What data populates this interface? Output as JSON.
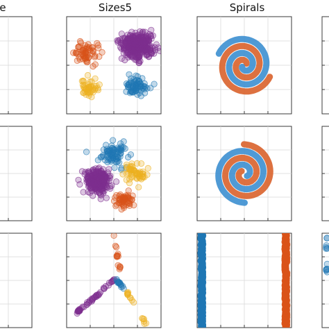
{
  "figure": {
    "column_titles": [
      "e",
      "Sizes5",
      "Spirals",
      ""
    ],
    "colors": {
      "blue": "#1f77b4",
      "orange": "#d95319",
      "yellow": "#edb120",
      "purple": "#7e2f8e",
      "green": "#77ac30",
      "spiral_blue": "#3c8fd0",
      "spiral_orange": "#d9622b"
    }
  },
  "chart_data": [
    {
      "id": "r1c1",
      "type": "scatter",
      "row": 1,
      "col": 1,
      "title": "e",
      "xlim": [
        0,
        1
      ],
      "ylim": [
        0,
        1
      ],
      "series": [
        {
          "color": "blue",
          "shape": "disk",
          "center": [
            0.18,
            0.52
          ],
          "radius": [
            0.34,
            0.46
          ],
          "count": 220,
          "seed": 11
        }
      ]
    },
    {
      "id": "r1c2",
      "type": "scatter",
      "row": 1,
      "col": 2,
      "title": "Sizes5",
      "xlim": [
        0,
        1
      ],
      "ylim": [
        0,
        1
      ],
      "series": [
        {
          "color": "orange",
          "shape": "blob",
          "center": [
            0.2,
            0.63
          ],
          "radius": [
            0.14,
            0.1
          ],
          "count": 60,
          "seed": 21
        },
        {
          "color": "purple",
          "shape": "blob",
          "center": [
            0.75,
            0.7
          ],
          "radius": [
            0.16,
            0.13
          ],
          "count": 380,
          "seed": 22
        },
        {
          "color": "yellow",
          "shape": "blob",
          "center": [
            0.25,
            0.27
          ],
          "radius": [
            0.1,
            0.1
          ],
          "count": 45,
          "seed": 23
        },
        {
          "color": "blue",
          "shape": "blob",
          "center": [
            0.75,
            0.28
          ],
          "radius": [
            0.13,
            0.09
          ],
          "count": 70,
          "seed": 24
        }
      ]
    },
    {
      "id": "r1c3",
      "type": "line",
      "row": 1,
      "col": 3,
      "title": "Spirals",
      "xlim": [
        -1,
        1
      ],
      "ylim": [
        -1,
        1
      ],
      "series": [
        {
          "color": "spiral_orange",
          "spiral": {
            "a": 0.03,
            "b": 0.145,
            "t0": 0.6,
            "t1": 12.2,
            "phase": 0.0
          }
        },
        {
          "color": "spiral_blue",
          "spiral": {
            "a": 0.03,
            "b": 0.145,
            "t0": 0.6,
            "t1": 12.2,
            "phase": 3.14159
          }
        }
      ]
    },
    {
      "id": "r1c4",
      "type": "scatter",
      "row": 1,
      "col": 4,
      "title": "",
      "xlim": [
        0,
        1
      ],
      "ylim": [
        0,
        1
      ],
      "series": [
        {
          "color": "green",
          "shape": "arc",
          "center": [
            0.55,
            0.45
          ],
          "radius": [
            0.42,
            0.42
          ],
          "count": 60,
          "seed": 31
        }
      ]
    },
    {
      "id": "r2c1",
      "type": "scatter",
      "row": 2,
      "col": 1,
      "title": "",
      "xlim": [
        0,
        1
      ],
      "ylim": [
        0,
        1
      ],
      "series": [
        {
          "color": "orange",
          "shape": "disk",
          "center": [
            0.2,
            0.5
          ],
          "radius": [
            0.36,
            0.46
          ],
          "count": 200,
          "seed": 41
        }
      ]
    },
    {
      "id": "r2c2",
      "type": "scatter",
      "row": 2,
      "col": 2,
      "title": "",
      "xlim": [
        0,
        1
      ],
      "ylim": [
        0,
        1
      ],
      "series": [
        {
          "color": "blue",
          "shape": "blob",
          "center": [
            0.5,
            0.7
          ],
          "radius": [
            0.14,
            0.12
          ],
          "count": 80,
          "seed": 51
        },
        {
          "color": "yellow",
          "shape": "blob",
          "center": [
            0.72,
            0.5
          ],
          "radius": [
            0.11,
            0.1
          ],
          "count": 55,
          "seed": 52
        },
        {
          "color": "purple",
          "shape": "blob",
          "center": [
            0.33,
            0.42
          ],
          "radius": [
            0.13,
            0.12
          ],
          "count": 260,
          "seed": 53
        },
        {
          "color": "orange",
          "shape": "blob",
          "center": [
            0.6,
            0.22
          ],
          "radius": [
            0.11,
            0.09
          ],
          "count": 55,
          "seed": 54
        }
      ]
    },
    {
      "id": "r2c3",
      "type": "line",
      "row": 2,
      "col": 3,
      "title": "",
      "xlim": [
        -1,
        1
      ],
      "ylim": [
        -1,
        1
      ],
      "series": [
        {
          "color": "spiral_orange",
          "spiral": {
            "a": 0.04,
            "b": 0.145,
            "t0": 0.8,
            "t1": 12.6,
            "phase": 1.6
          }
        },
        {
          "color": "spiral_blue",
          "spiral": {
            "a": 0.04,
            "b": 0.145,
            "t0": 0.8,
            "t1": 12.6,
            "phase": 4.74
          }
        }
      ]
    },
    {
      "id": "r2c4",
      "type": "scatter",
      "row": 2,
      "col": 4,
      "title": "",
      "xlim": [
        0,
        1
      ],
      "ylim": [
        0,
        1
      ],
      "series": [
        {
          "color": "green",
          "shape": "arc",
          "center": [
            0.62,
            0.52
          ],
          "radius": [
            0.3,
            0.3
          ],
          "count": 50,
          "seed": 61
        },
        {
          "color": "blue",
          "shape": "arc",
          "center": [
            0.62,
            0.52
          ],
          "radius": [
            0.42,
            0.42
          ],
          "count": 50,
          "seed": 62
        }
      ]
    },
    {
      "id": "r3c1",
      "type": "scatter",
      "row": 3,
      "col": 1,
      "title": "",
      "xlim": [
        0,
        1
      ],
      "ylim": [
        0,
        1
      ],
      "series": [
        {
          "color": "orange",
          "shape": "column",
          "x": 0.22,
          "yrange": [
            0.3,
            0.97
          ],
          "count": 22,
          "seed": 71
        }
      ]
    },
    {
      "id": "r3c2",
      "type": "scatter",
      "row": 3,
      "col": 2,
      "title": "",
      "xlim": [
        0,
        1
      ],
      "ylim": [
        0,
        1
      ],
      "series": [
        {
          "color": "orange",
          "shape": "segment",
          "from": [
            0.5,
            0.98
          ],
          "to": [
            0.58,
            0.52
          ],
          "count": 14,
          "seed": 81
        },
        {
          "color": "purple",
          "shape": "segment",
          "from": [
            0.1,
            0.15
          ],
          "to": [
            0.52,
            0.52
          ],
          "count": 50,
          "seed": 82
        },
        {
          "color": "blue",
          "shape": "segment",
          "from": [
            0.52,
            0.52
          ],
          "to": [
            0.62,
            0.4
          ],
          "count": 14,
          "seed": 83
        },
        {
          "color": "yellow",
          "shape": "segment",
          "from": [
            0.62,
            0.4
          ],
          "to": [
            0.72,
            0.25
          ],
          "count": 10,
          "seed": 84
        },
        {
          "color": "yellow",
          "shape": "segment",
          "from": [
            0.8,
            0.12
          ],
          "to": [
            0.84,
            0.03
          ],
          "count": 6,
          "seed": 85
        }
      ]
    },
    {
      "id": "r3c3",
      "type": "scatter",
      "row": 3,
      "col": 3,
      "title": "",
      "xlim": [
        0,
        1
      ],
      "ylim": [
        0,
        1
      ],
      "series": [
        {
          "color": "blue",
          "shape": "column",
          "x": 0.05,
          "yrange": [
            0.0,
            1.0
          ],
          "count": 120,
          "seed": 91,
          "dense": true
        },
        {
          "color": "orange",
          "shape": "column",
          "x": 0.94,
          "yrange": [
            0.0,
            1.0
          ],
          "count": 120,
          "seed": 92,
          "dense": true
        }
      ]
    },
    {
      "id": "r3c4",
      "type": "scatter",
      "row": 3,
      "col": 4,
      "title": "",
      "xlim": [
        0,
        1
      ],
      "ylim": [
        0,
        1
      ],
      "series": [
        {
          "color": "blue",
          "shape": "column",
          "x": 0.05,
          "yrange": [
            0.55,
            1.0
          ],
          "count": 12,
          "seed": 95
        }
      ]
    }
  ]
}
